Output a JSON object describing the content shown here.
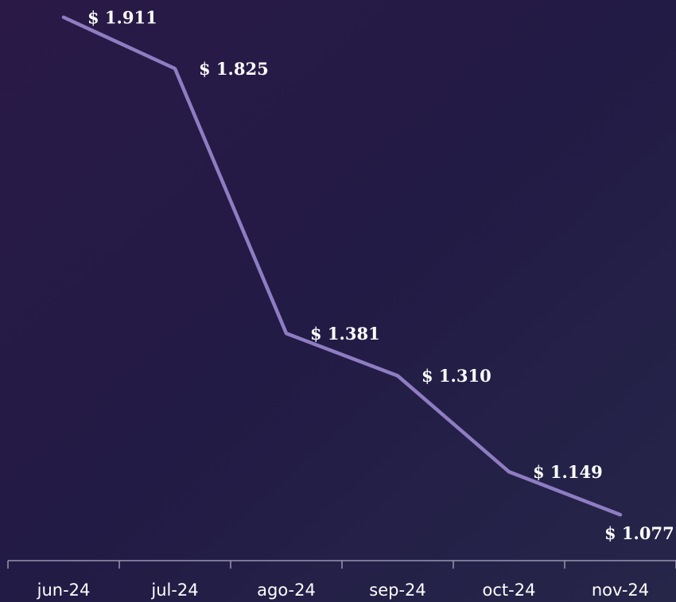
{
  "chart_data": {
    "type": "line",
    "categories": [
      "jun-24",
      "jul-24",
      "ago-24",
      "sep-24",
      "oct-24",
      "nov-24"
    ],
    "values": [
      1911,
      1825,
      1381,
      1310,
      1149,
      1077
    ],
    "value_labels": [
      "$ 1.911",
      "$ 1.825",
      "$ 1.381",
      "$ 1.310",
      "$ 1.149",
      "$ 1.077"
    ],
    "color": "#8f7dc2",
    "ylim": [
      1000,
      1940
    ]
  }
}
